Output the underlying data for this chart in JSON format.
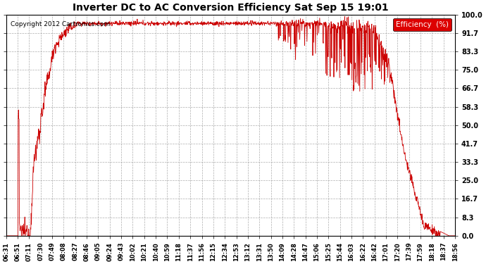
{
  "title": "Inverter DC to AC Conversion Efficiency Sat Sep 15 19:01",
  "copyright": "Copyright 2012 Cartronics.com",
  "legend_label": "Efficiency  (%)",
  "legend_bg": "#dd0000",
  "legend_fg": "#ffffff",
  "line_color": "#cc0000",
  "bg_color": "#ffffff",
  "plot_bg": "#ffffff",
  "grid_color": "#999999",
  "ylim": [
    0.0,
    100.0
  ],
  "yticks": [
    0.0,
    8.3,
    16.7,
    25.0,
    33.3,
    41.7,
    50.0,
    58.3,
    66.7,
    75.0,
    83.3,
    91.7,
    100.0
  ],
  "xtick_labels": [
    "06:31",
    "06:51",
    "07:11",
    "07:30",
    "07:49",
    "08:08",
    "08:27",
    "08:46",
    "09:05",
    "09:24",
    "09:43",
    "10:02",
    "10:21",
    "10:40",
    "10:59",
    "11:18",
    "11:37",
    "11:56",
    "12:15",
    "12:34",
    "12:53",
    "13:12",
    "13:31",
    "13:50",
    "14:09",
    "14:28",
    "14:47",
    "15:06",
    "15:25",
    "15:44",
    "16:03",
    "16:22",
    "16:42",
    "17:01",
    "17:20",
    "17:39",
    "17:59",
    "18:18",
    "18:37",
    "18:56"
  ],
  "figsize": [
    6.9,
    3.75
  ],
  "dpi": 100
}
